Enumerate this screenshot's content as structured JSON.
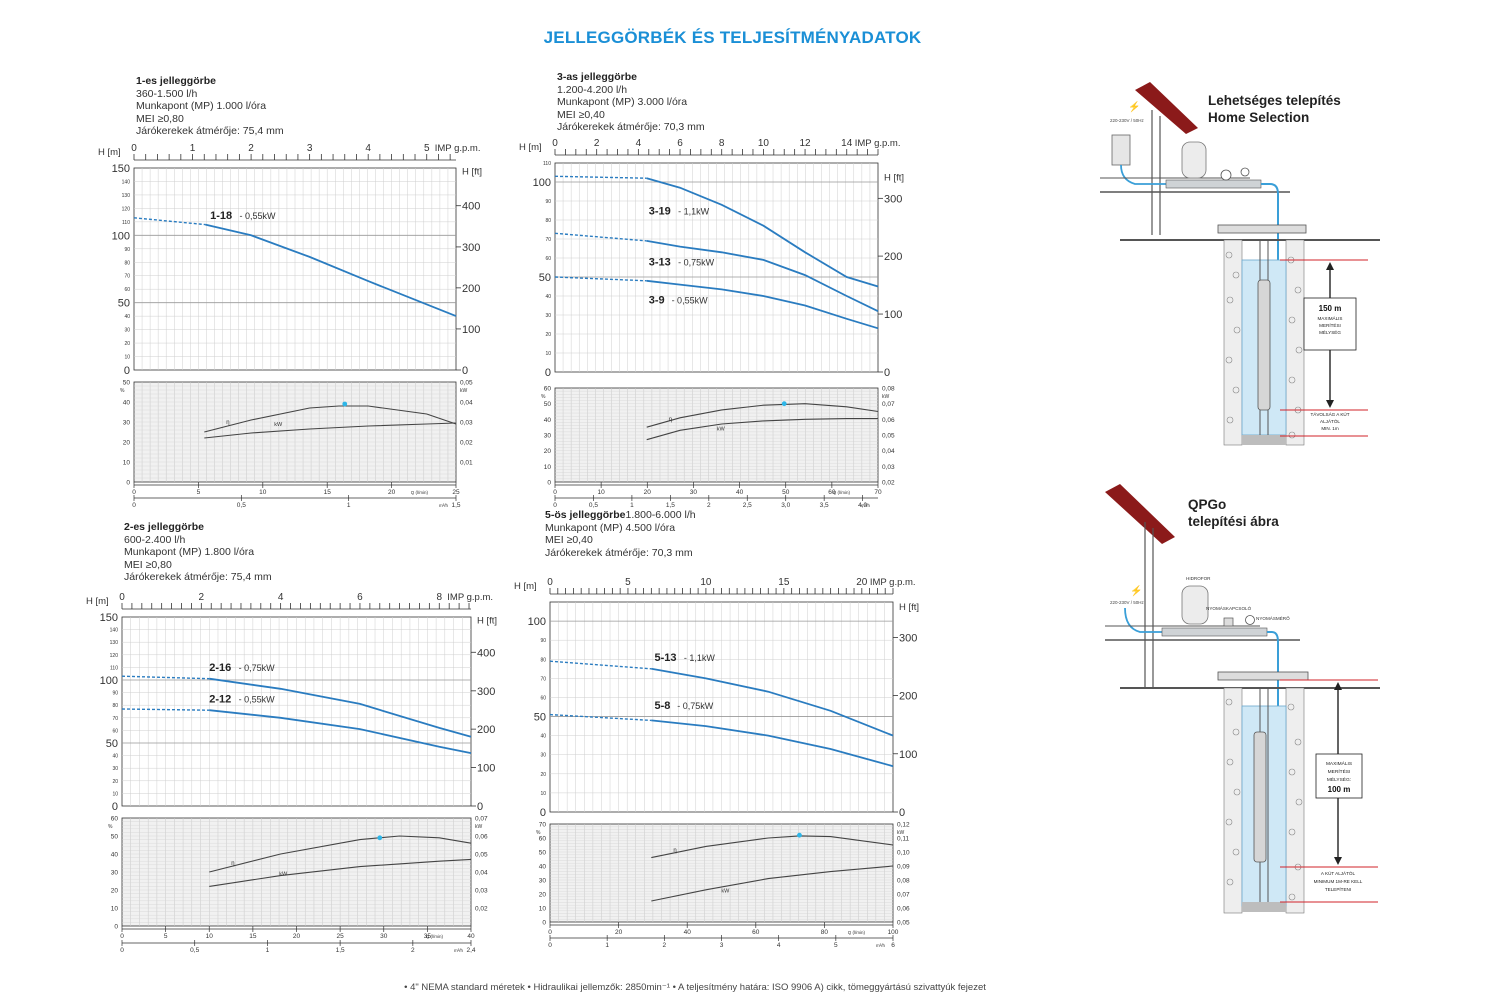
{
  "page": {
    "title": "JELLEGGÖRBÉK ÉS TELJESÍTMÉNYADATOK",
    "footer": "• 4\" NEMA standard méretek   • Hidraulikai jellemzők: 2850min⁻¹   • A teljesítmény határa: ISO 9906 A) cikk, tömeggyártású szivattyúk fejezet"
  },
  "colors": {
    "title": "#1a8fd6",
    "curve": "#2a7cc0",
    "mp_dot": "#2eb6e8",
    "efficiency": "#444444",
    "red_marker": "#d2232a"
  },
  "blocks": [
    {
      "title": "1-es jelleggörbe",
      "lines": [
        "360-1.500 l/h",
        "Munkapont (MP) 1.000 l/óra",
        "MEI ≥0,80",
        "Járókerekek átmérője: 75,4 mm"
      ]
    },
    {
      "title": "3-as jelleggörbe",
      "lines": [
        "1.200-4.200 l/h",
        "Munkapont (MP) 3.000 l/óra",
        "MEI ≥0,40",
        "Járókerekek átmérője: 70,3 mm"
      ]
    },
    {
      "title": "2-es jelleggörbe",
      "lines": [
        "600-2.400 l/h",
        "Munkapont (MP) 1.800 l/óra",
        "MEI ≥0,80",
        "Járókerekek átmérője: 75,4 mm"
      ]
    },
    {
      "title": "5-ös jelleggörbe",
      "title_suffix": "1.800-6.000 l/h",
      "lines": [
        "Munkapont (MP) 4.500 l/óra",
        "MEI ≥0,40",
        "Járókerekek átmérője: 70,3 mm"
      ]
    }
  ],
  "chart_data": [
    {
      "type": "line",
      "id": "1",
      "xlabel": "IMP g.p.m.",
      "ylabel": "H [m]",
      "y2label": "H [ft]",
      "top_ticks": [
        "0",
        "1",
        "2",
        "3",
        "4",
        "5"
      ],
      "xlim_gpm": [
        0,
        5.5
      ],
      "ylim": [
        0,
        150
      ],
      "y_ticks": [
        "150",
        "100",
        "50",
        "0"
      ],
      "y_minor": [
        "140",
        "130",
        "120",
        "110",
        "90",
        "80",
        "70",
        "60",
        "40",
        "30",
        "20",
        "10"
      ],
      "ft_ticks": [
        {
          "label": "H [ft]",
          "v": 148
        },
        {
          "label": "400",
          "v": 122
        },
        {
          "label": "300",
          "v": 91.4
        },
        {
          "label": "200",
          "v": 61
        },
        {
          "label": "100",
          "v": 30.5
        },
        {
          "label": "0",
          "v": 0
        }
      ],
      "series": [
        {
          "name": "1-18",
          "label": "1-18",
          "power": "- 0,55kW",
          "dashed": [
            [
              0,
              113
            ],
            [
              1.22,
              108
            ]
          ],
          "solid": [
            [
              1.22,
              108
            ],
            [
              2,
              100
            ],
            [
              3,
              84
            ],
            [
              4,
              66
            ],
            [
              5.5,
              40
            ]
          ],
          "label_at": [
            1.3,
            112
          ]
        }
      ],
      "eff": {
        "left_axis": "%",
        "left_ticks": [
          "50",
          "40",
          "30",
          "20",
          "10",
          "0"
        ],
        "ylim": [
          0,
          50
        ],
        "right_axis": "kW",
        "right_ticks": [
          "0,05",
          "0,04",
          "0,03",
          "0,02",
          "0,01"
        ],
        "right_vals": [
          50,
          40,
          30,
          20,
          10
        ],
        "eta": [
          [
            1.2,
            25
          ],
          [
            2,
            31
          ],
          [
            3,
            37
          ],
          [
            3.5,
            38
          ],
          [
            4,
            38
          ],
          [
            5,
            34
          ],
          [
            5.5,
            29
          ]
        ],
        "kw": [
          [
            1.2,
            22
          ],
          [
            2,
            24.5
          ],
          [
            3,
            26.5
          ],
          [
            4,
            28
          ],
          [
            5,
            29
          ],
          [
            5.5,
            29.5
          ]
        ],
        "mp": [
          3.6,
          39
        ],
        "eta_label": "η",
        "kw_label": "kW"
      },
      "bottom": {
        "q_ticks": [
          "0",
          "5",
          "10",
          "15",
          "20",
          "25"
        ],
        "q_range": [
          0,
          25
        ],
        "q_label": "Q (l/min)",
        "m3_ticks": [
          "0",
          "0,5",
          "1",
          "1,5"
        ],
        "m3_range": [
          0,
          1.5
        ],
        "m3_label": "m³/h"
      }
    },
    {
      "type": "line",
      "id": "3",
      "xlabel": "IMP g.p.m.",
      "ylabel": "H [m]",
      "y2label": "H [ft]",
      "top_ticks": [
        "0",
        "2",
        "4",
        "6",
        "8",
        "10",
        "12",
        "14"
      ],
      "xlim_gpm": [
        0,
        15.5
      ],
      "ylim": [
        0,
        110
      ],
      "y_ticks": [
        "100",
        "50",
        "0"
      ],
      "y_minor": [
        "110",
        "90",
        "80",
        "70",
        "60",
        "40",
        "30",
        "20",
        "10"
      ],
      "ft_ticks": [
        {
          "label": "H [ft]",
          "v": 103
        },
        {
          "label": "300",
          "v": 91.4
        },
        {
          "label": "200",
          "v": 61
        },
        {
          "label": "100",
          "v": 30.5
        },
        {
          "label": "0",
          "v": 0
        }
      ],
      "series": [
        {
          "name": "3-19",
          "label": "3-19",
          "power": "- 1,1kW",
          "dashed": [
            [
              0,
              103
            ],
            [
              4.4,
              102
            ]
          ],
          "solid": [
            [
              4.4,
              102
            ],
            [
              6,
              97
            ],
            [
              8,
              88
            ],
            [
              10,
              77
            ],
            [
              12,
              63
            ],
            [
              14,
              50
            ],
            [
              15.5,
              45
            ]
          ],
          "label_at": [
            4.5,
            83
          ]
        },
        {
          "name": "3-13",
          "label": "3-13",
          "power": "- 0,75kW",
          "dashed": [
            [
              0,
              73
            ],
            [
              4.4,
              69
            ]
          ],
          "solid": [
            [
              4.4,
              69
            ],
            [
              6,
              66
            ],
            [
              8,
              63
            ],
            [
              10,
              59
            ],
            [
              12,
              51
            ],
            [
              14,
              40
            ],
            [
              15.5,
              32
            ]
          ],
          "label_at": [
            4.5,
            56
          ]
        },
        {
          "name": "3-9",
          "label": "3-9",
          "power": "- 0,55kW",
          "dashed": [
            [
              0,
              50
            ],
            [
              4.4,
              48
            ]
          ],
          "solid": [
            [
              4.4,
              48
            ],
            [
              6,
              46
            ],
            [
              8,
              43.5
            ],
            [
              10,
              40
            ],
            [
              12,
              35
            ],
            [
              14,
              28
            ],
            [
              15.5,
              23
            ]
          ],
          "label_at": [
            4.5,
            36
          ]
        }
      ],
      "eff": {
        "left_axis": "%",
        "left_ticks": [
          "60",
          "50",
          "40",
          "30",
          "20",
          "10",
          "0"
        ],
        "ylim": [
          0,
          60
        ],
        "right_axis": "kW",
        "right_ticks": [
          "0,08",
          "0,07",
          "0,06",
          "0,05",
          "0,04",
          "0,03",
          "0,02"
        ],
        "right_vals": [
          60,
          50,
          40,
          30,
          20,
          10,
          0
        ],
        "eta": [
          [
            4.4,
            35
          ],
          [
            6,
            41
          ],
          [
            8,
            46
          ],
          [
            10,
            49
          ],
          [
            12,
            50
          ],
          [
            14,
            48
          ],
          [
            15.5,
            45
          ]
        ],
        "kw": [
          [
            4.4,
            27
          ],
          [
            6,
            33
          ],
          [
            8,
            37
          ],
          [
            10,
            39
          ],
          [
            12,
            40
          ],
          [
            14,
            40.5
          ],
          [
            15.5,
            40.5
          ]
        ],
        "mp": [
          11,
          50
        ],
        "eta_label": "η",
        "kw_label": "kW"
      },
      "bottom": {
        "q_ticks": [
          "0",
          "10",
          "20",
          "30",
          "40",
          "50",
          "60",
          "70"
        ],
        "q_range": [
          0,
          70
        ],
        "q_label": "Q (l/min)",
        "m3_ticks": [
          "0",
          "0,5",
          "1",
          "1,5",
          "2",
          "2,5",
          "3,0",
          "3,5",
          "4,0"
        ],
        "m3_range": [
          0,
          4.2
        ],
        "m3_label": "m³/h"
      }
    },
    {
      "type": "line",
      "id": "2",
      "xlabel": "IMP g.p.m.",
      "ylabel": "H [m]",
      "y2label": "H [ft]",
      "top_ticks": [
        "0",
        "2",
        "4",
        "6",
        "8"
      ],
      "xlim_gpm": [
        0,
        8.8
      ],
      "ylim": [
        0,
        150
      ],
      "y_ticks": [
        "150",
        "100",
        "50",
        "0"
      ],
      "y_minor": [
        "140",
        "130",
        "120",
        "110",
        "90",
        "80",
        "70",
        "60",
        "40",
        "30",
        "20",
        "10"
      ],
      "ft_ticks": [
        {
          "label": "H [ft]",
          "v": 148
        },
        {
          "label": "400",
          "v": 122
        },
        {
          "label": "300",
          "v": 91.4
        },
        {
          "label": "200",
          "v": 61
        },
        {
          "label": "100",
          "v": 30.5
        },
        {
          "label": "0",
          "v": 0
        }
      ],
      "series": [
        {
          "name": "2-16",
          "label": "2-16",
          "power": "- 0,75kW",
          "dashed": [
            [
              0,
              103
            ],
            [
              2.2,
              101
            ]
          ],
          "solid": [
            [
              2.2,
              101
            ],
            [
              4,
              93
            ],
            [
              6,
              81
            ],
            [
              8,
              62
            ],
            [
              8.8,
              55
            ]
          ],
          "label_at": [
            2.2,
            107
          ]
        },
        {
          "name": "2-12",
          "label": "2-12",
          "power": "- 0,55kW",
          "dashed": [
            [
              0,
              77
            ],
            [
              2.2,
              76
            ]
          ],
          "solid": [
            [
              2.2,
              76
            ],
            [
              4,
              70
            ],
            [
              6,
              61
            ],
            [
              8,
              47
            ],
            [
              8.8,
              42
            ]
          ],
          "label_at": [
            2.2,
            82
          ]
        }
      ],
      "eff": {
        "left_axis": "%",
        "left_ticks": [
          "60",
          "50",
          "40",
          "30",
          "20",
          "10",
          "0"
        ],
        "ylim": [
          0,
          60
        ],
        "right_axis": "kW",
        "right_ticks": [
          "0,07",
          "0,06",
          "0,05",
          "0,04",
          "0,03",
          "0,02"
        ],
        "right_vals": [
          60,
          50,
          40,
          30,
          20,
          10
        ],
        "eta": [
          [
            2.2,
            30
          ],
          [
            4,
            40
          ],
          [
            6,
            48
          ],
          [
            7,
            50
          ],
          [
            8,
            49
          ],
          [
            8.8,
            46
          ]
        ],
        "kw": [
          [
            2.2,
            22
          ],
          [
            4,
            28
          ],
          [
            6,
            33
          ],
          [
            8,
            36
          ],
          [
            8.8,
            37
          ]
        ],
        "mp": [
          6.5,
          49
        ],
        "eta_label": "η",
        "kw_label": "kW"
      },
      "bottom": {
        "q_ticks": [
          "0",
          "5",
          "10",
          "15",
          "20",
          "25",
          "30",
          "35",
          "40"
        ],
        "q_range": [
          0,
          40
        ],
        "q_label": "Q (l/min)",
        "m3_ticks": [
          "0",
          "0,5",
          "1",
          "1,5",
          "2",
          "2,4"
        ],
        "m3_range": [
          0,
          2.4
        ],
        "m3_label": "m³/h"
      }
    },
    {
      "type": "line",
      "id": "5",
      "xlabel": "IMP g.p.m.",
      "ylabel": "H [m]",
      "y2label": "H [ft]",
      "top_ticks": [
        "0",
        "5",
        "10",
        "15",
        "20"
      ],
      "xlim_gpm": [
        0,
        22
      ],
      "ylim": [
        0,
        110
      ],
      "y_ticks": [
        "100",
        "50",
        "0"
      ],
      "y_minor": [
        "90",
        "80",
        "70",
        "60",
        "40",
        "30",
        "20",
        "10"
      ],
      "ft_ticks": [
        {
          "label": "H [ft]",
          "v": 108
        },
        {
          "label": "300",
          "v": 91.4
        },
        {
          "label": "200",
          "v": 61
        },
        {
          "label": "100",
          "v": 30.5
        },
        {
          "label": "0",
          "v": 0
        }
      ],
      "series": [
        {
          "name": "5-13",
          "label": "5-13",
          "power": "- 1,1kW",
          "dashed": [
            [
              0,
              79
            ],
            [
              6.5,
              75
            ]
          ],
          "solid": [
            [
              6.5,
              75
            ],
            [
              10,
              70
            ],
            [
              14,
              63
            ],
            [
              18,
              53
            ],
            [
              22,
              40
            ]
          ],
          "label_at": [
            6.7,
            79
          ]
        },
        {
          "name": "5-8",
          "label": "5-8",
          "power": "- 0,75kW",
          "dashed": [
            [
              0,
              51
            ],
            [
              6.5,
              48
            ]
          ],
          "solid": [
            [
              6.5,
              48
            ],
            [
              10,
              45
            ],
            [
              14,
              40
            ],
            [
              18,
              33
            ],
            [
              22,
              24
            ]
          ],
          "label_at": [
            6.7,
            54
          ]
        }
      ],
      "eff": {
        "left_axis": "%",
        "left_ticks": [
          "70",
          "60",
          "50",
          "40",
          "30",
          "20",
          "10",
          "0"
        ],
        "ylim": [
          0,
          70
        ],
        "right_axis": "kW",
        "right_ticks": [
          "0,12",
          "0,11",
          "0,10",
          "0,09",
          "0,08",
          "0,07",
          "0,06",
          "0,05"
        ],
        "right_vals": [
          70,
          60,
          50,
          40,
          30,
          20,
          10,
          0
        ],
        "eta": [
          [
            6.5,
            46
          ],
          [
            10,
            54
          ],
          [
            14,
            60
          ],
          [
            16,
            61.5
          ],
          [
            18,
            61
          ],
          [
            22,
            55
          ]
        ],
        "kw": [
          [
            6.5,
            15
          ],
          [
            10,
            23
          ],
          [
            14,
            31
          ],
          [
            18,
            36
          ],
          [
            22,
            40
          ]
        ],
        "mp": [
          16,
          62
        ],
        "eta_label": "η",
        "kw_label": "kW"
      },
      "bottom": {
        "q_ticks": [
          "0",
          "20",
          "40",
          "60",
          "80",
          "100"
        ],
        "q_range": [
          0,
          100
        ],
        "q_label": "Q (l/min)",
        "m3_ticks": [
          "0",
          "1",
          "2",
          "3",
          "4",
          "5",
          "6"
        ],
        "m3_range": [
          0,
          6
        ],
        "m3_label": "m³/h"
      }
    }
  ],
  "installs": [
    {
      "title_lines": [
        "Lehetséges telepítés",
        "Home Selection"
      ],
      "power_label": "220-230V / 50Hz",
      "depth_label": [
        "150 m",
        "MAXIMÁLIS",
        "MERÍTÉSI",
        "MÉLYSÉG"
      ],
      "bottom_label": [
        "TÁVOLSÁG A KÚT",
        "ALJÁTÓL",
        "MIN. 1m"
      ]
    },
    {
      "title_lines": [
        "QPGo",
        "telepítési ábra"
      ],
      "power_label": "220-230V / 50Hz",
      "tank_label": "HIDROFOR",
      "switch_label": "NYOMÁSKAPCSOLÓ",
      "gauge_label": "NYOMÁSMÉRŐ",
      "depth_label": [
        "MAXIMÁLIS",
        "MERÍTÉSI",
        "MÉLYSÉG:",
        "100 m"
      ],
      "bottom_label": [
        "A KÚT ALJÁTÓL",
        "MINIMUM 1M-RE KELL",
        "TELEPÍTENI"
      ]
    }
  ]
}
